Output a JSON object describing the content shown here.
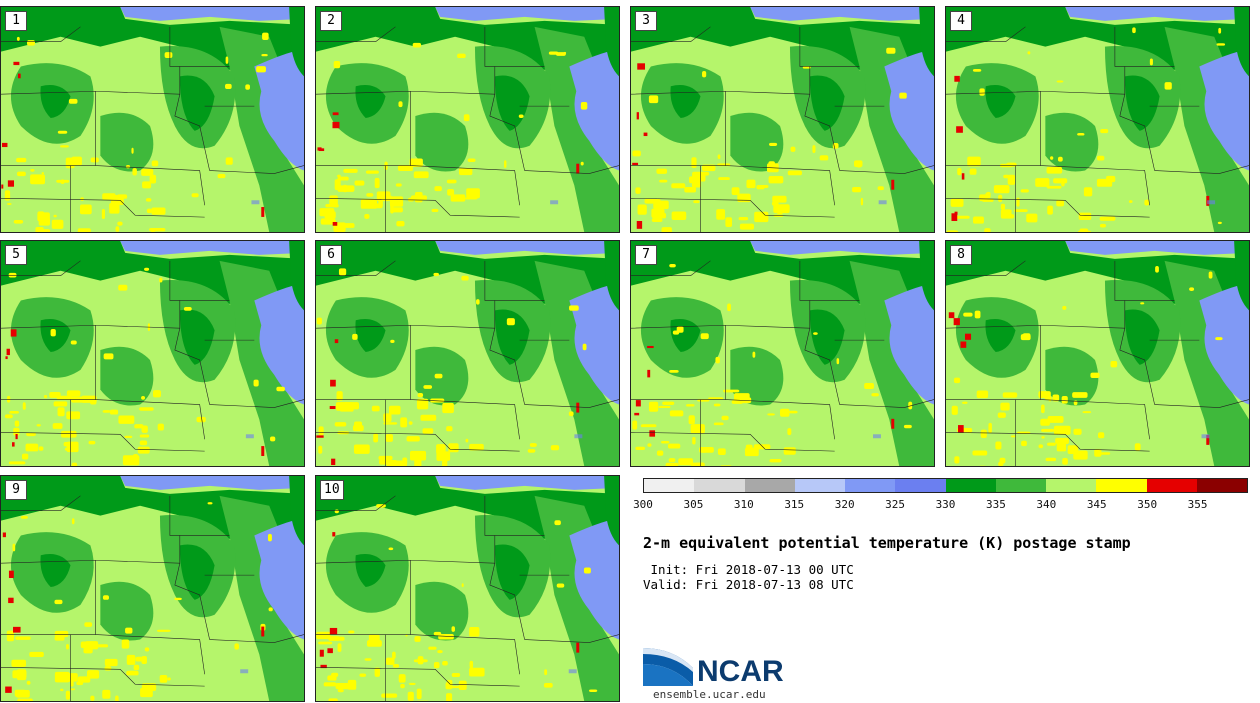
{
  "panels": [
    "1",
    "2",
    "3",
    "4",
    "5",
    "6",
    "7",
    "8",
    "9",
    "10"
  ],
  "colorbar": {
    "ticks": [
      "300",
      "305",
      "310",
      "315",
      "320",
      "325",
      "330",
      "335",
      "340",
      "345",
      "350",
      "355"
    ],
    "colors": [
      "#f0f0f0",
      "#d9d9d9",
      "#a8a8a8",
      "#b7c8f8",
      "#8099f5",
      "#6b7ff0",
      "#009a19",
      "#3fb93b",
      "#b5f56b",
      "#ffff00",
      "#e50000",
      "#8b0000"
    ]
  },
  "title": "2-m equivalent potential temperature (K) postage stamp",
  "init": " Init: Fri 2018-07-13 00 UTC",
  "valid": "Valid: Fri 2018-07-13 08 UTC",
  "logo": {
    "name": "NCAR",
    "url": "ensemble.ucar.edu"
  }
}
